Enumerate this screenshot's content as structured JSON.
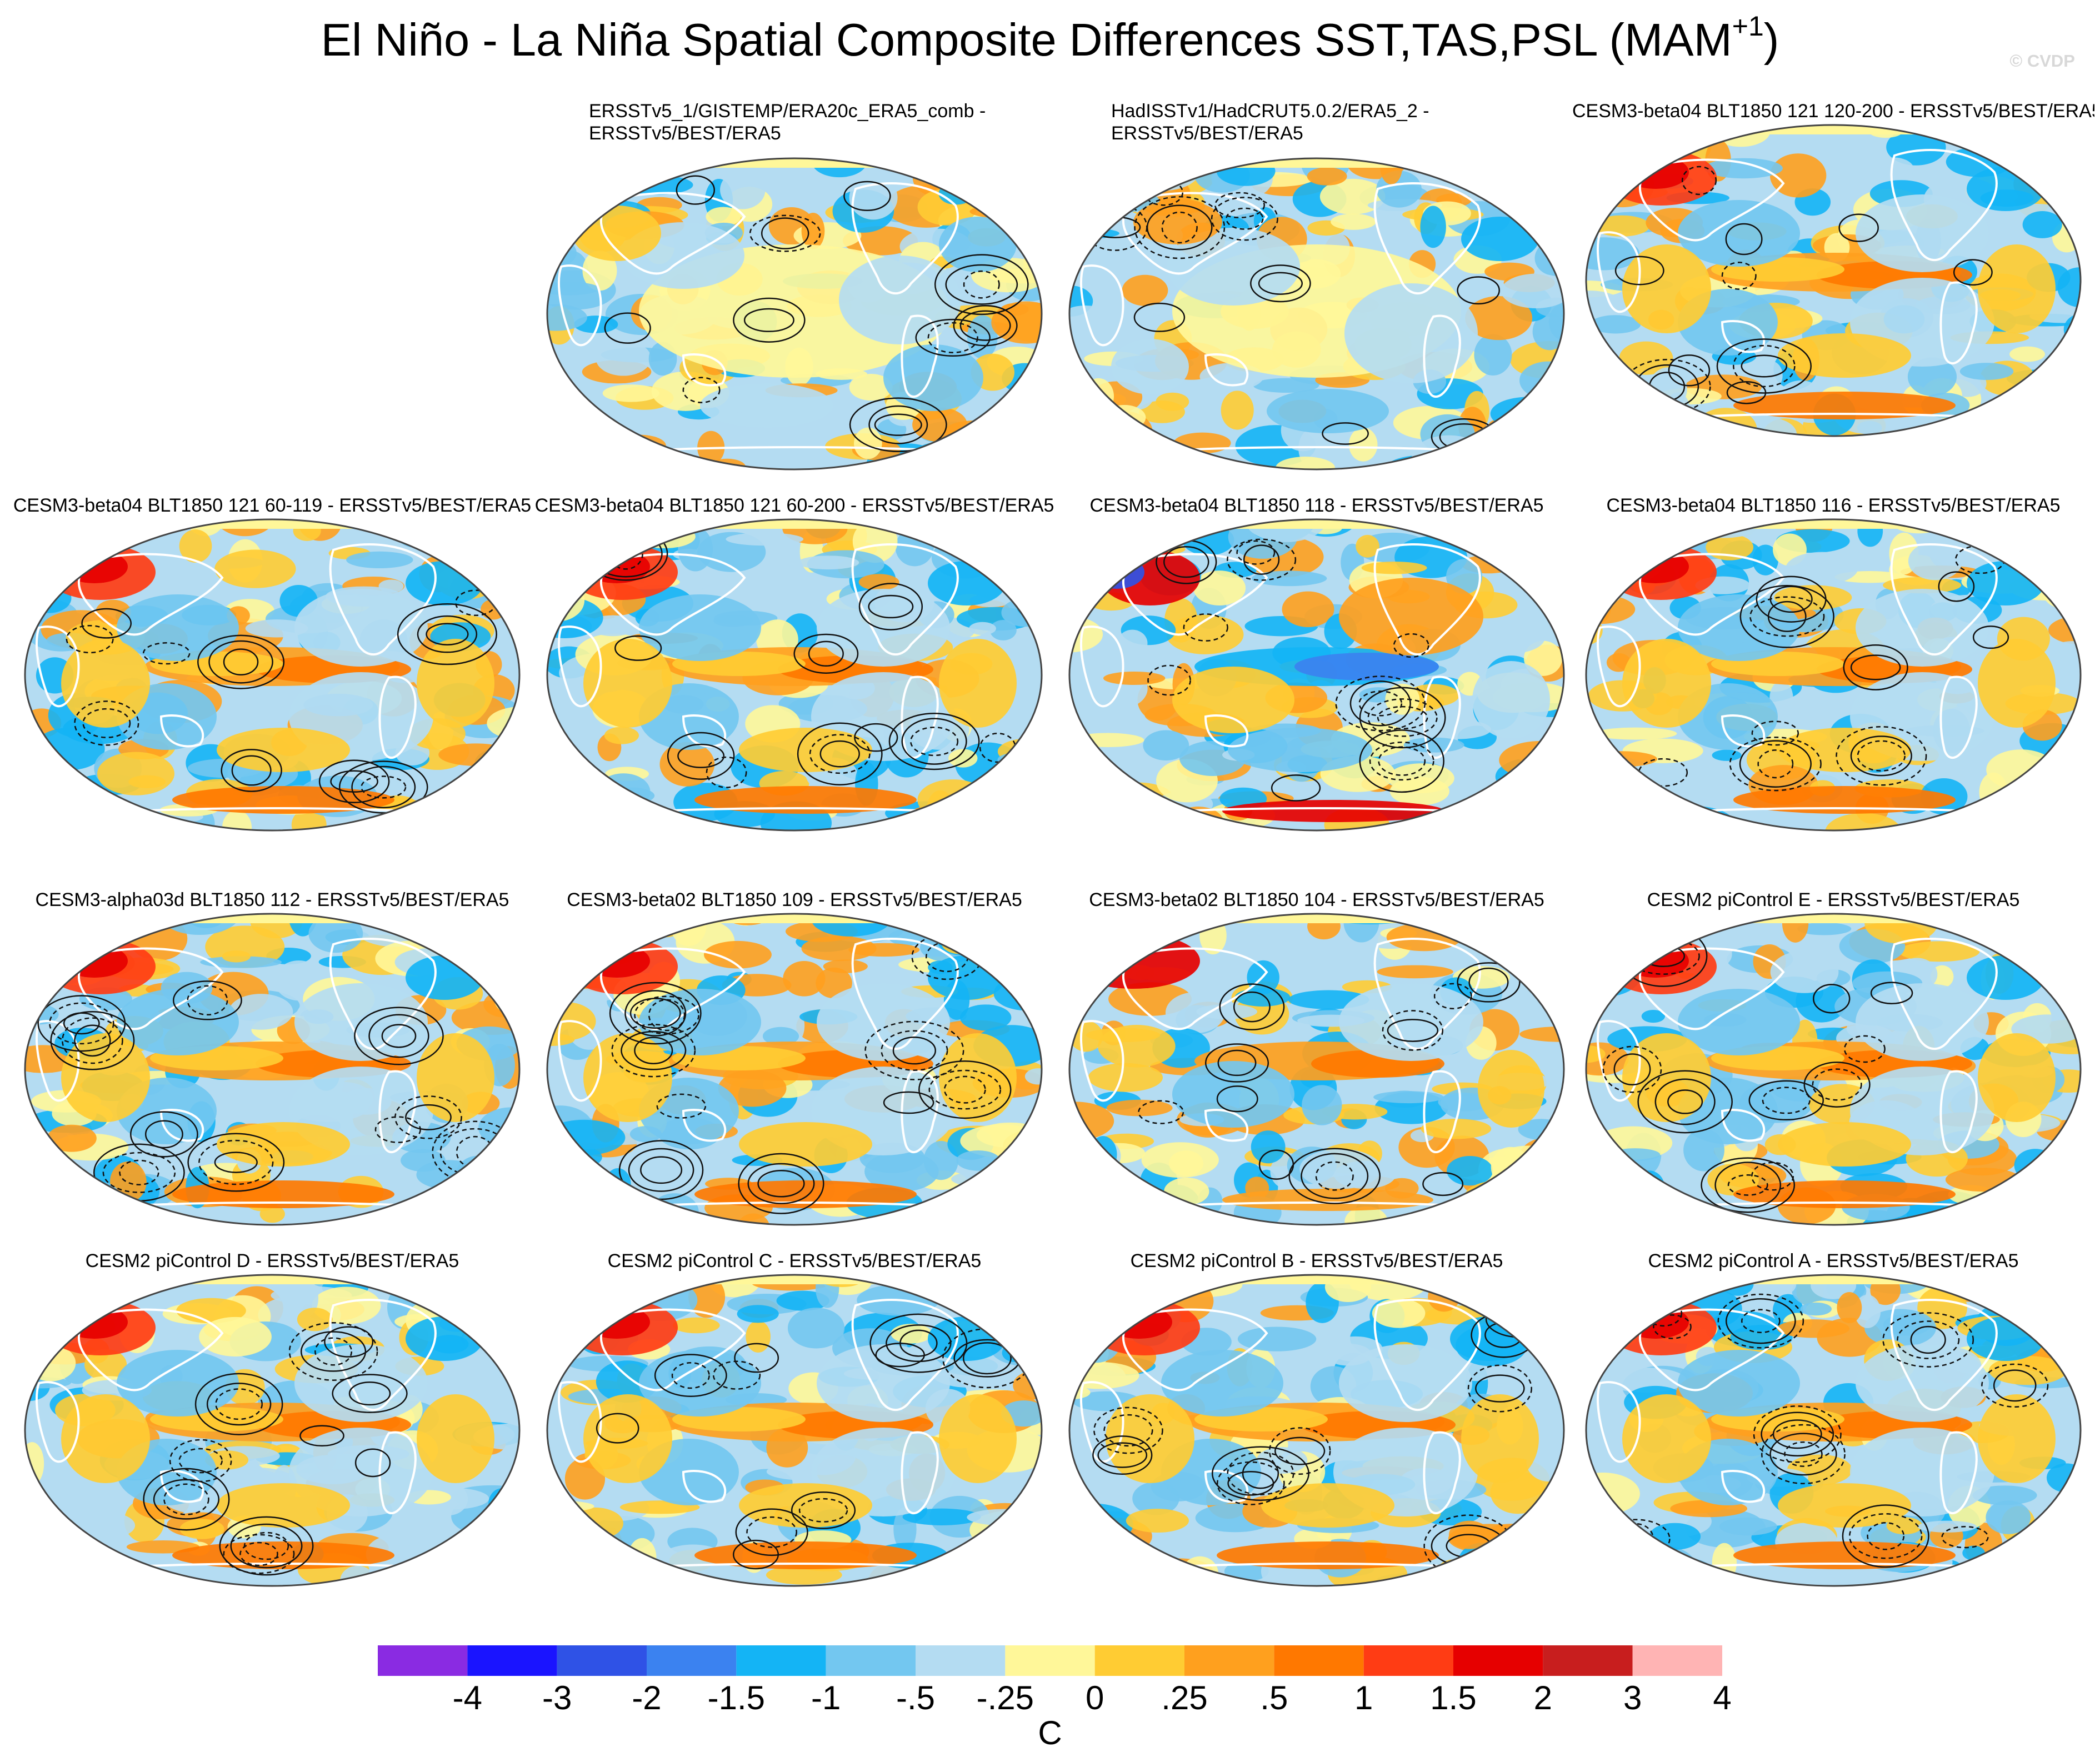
{
  "title_main": "El Niño - La Niña Spatial Composite Differences SST,TAS,PSL (MAM",
  "title_sup": "+1",
  "title_close": ")",
  "watermark": "© CVDP",
  "panels": [
    {
      "title": [
        "ERSSTv5_1/GISTEMP/ERA20c_ERA5_comb -",
        "ERSSTv5/BEST/ERA5"
      ],
      "pattern": "obs1"
    },
    {
      "title": [
        "HadISSTv1/HadCRUT5.0.2/ERA5_2 -",
        "ERSSTv5/BEST/ERA5"
      ],
      "pattern": "obs2"
    },
    {
      "title": [
        "CESM3-beta04 BLT1850 121 120-200 - ERSSTv5/BEST/ERA5"
      ],
      "pattern": "nino"
    },
    {
      "title": [
        "CESM3-beta04 BLT1850 121 60-119 - ERSSTv5/BEST/ERA5"
      ],
      "pattern": "nino"
    },
    {
      "title": [
        "CESM3-beta04 BLT1850 121 60-200 - ERSSTv5/BEST/ERA5"
      ],
      "pattern": "nino"
    },
    {
      "title": [
        "CESM3-beta04 BLT1850 118 - ERSSTv5/BEST/ERA5"
      ],
      "pattern": "nina"
    },
    {
      "title": [
        "CESM3-beta04 BLT1850 116 - ERSSTv5/BEST/ERA5"
      ],
      "pattern": "nino"
    },
    {
      "title": [
        "CESM3-alpha03d BLT1850 112 - ERSSTv5/BEST/ERA5"
      ],
      "pattern": "nino"
    },
    {
      "title": [
        "CESM3-beta02 BLT1850 109 - ERSSTv5/BEST/ERA5"
      ],
      "pattern": "nino"
    },
    {
      "title": [
        "CESM3-beta02 BLT1850 104 - ERSSTv5/BEST/ERA5"
      ],
      "pattern": "mixed"
    },
    {
      "title": [
        "CESM2 piControl E - ERSSTv5/BEST/ERA5"
      ],
      "pattern": "nino"
    },
    {
      "title": [
        "CESM2 piControl D - ERSSTv5/BEST/ERA5"
      ],
      "pattern": "nino"
    },
    {
      "title": [
        "CESM2 piControl C - ERSSTv5/BEST/ERA5"
      ],
      "pattern": "nino"
    },
    {
      "title": [
        "CESM2 piControl B - ERSSTv5/BEST/ERA5"
      ],
      "pattern": "nino"
    },
    {
      "title": [
        "CESM2 piControl A - ERSSTv5/BEST/ERA5"
      ],
      "pattern": "nino"
    }
  ],
  "colorbar": {
    "colors": [
      "#8a2be2",
      "#1a14ff",
      "#2f52e6",
      "#3b82f0",
      "#14b4f5",
      "#73c7f0",
      "#b4dcf2",
      "#fff799",
      "#ffcc33",
      "#ffa01e",
      "#ff7800",
      "#ff3c14",
      "#e60000",
      "#c81e1e",
      "#ffb4b4"
    ],
    "labels": [
      "-4",
      "-3",
      "-2",
      "-1.5",
      "-1",
      "-.5",
      "-.25",
      "0",
      ".25",
      ".5",
      "1",
      "1.5",
      "2",
      "3",
      "4"
    ],
    "units": "C"
  }
}
